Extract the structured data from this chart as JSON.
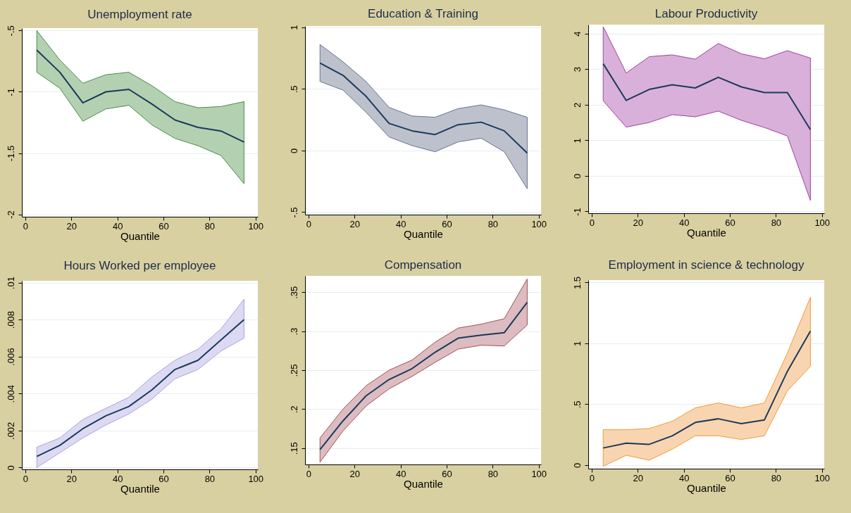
{
  "chart_data": [
    {
      "type": "line",
      "title": "Unemployment rate",
      "xlabel": "Quantile",
      "x": [
        5,
        15,
        25,
        35,
        45,
        55,
        65,
        75,
        85,
        95
      ],
      "xlim": [
        -1.5,
        101
      ],
      "xticks": [
        0,
        20,
        40,
        60,
        80,
        100
      ],
      "ylim": [
        -2.02,
        -0.48
      ],
      "yticks": [
        {
          "value": -0.5,
          "label": "-.5"
        },
        -1,
        -1.5,
        -2
      ],
      "grid": "y",
      "marker": "none",
      "series": [
        {
          "color": "#1a3a5c",
          "values": [
            -0.66,
            -0.84,
            -1.09,
            -1.0,
            -0.98,
            -1.1,
            -1.23,
            -1.29,
            -1.32,
            -1.41
          ],
          "lower": [
            -0.84,
            -0.97,
            -1.24,
            -1.14,
            -1.11,
            -1.27,
            -1.38,
            -1.44,
            -1.52,
            -1.75
          ],
          "upper": [
            -0.5,
            -0.74,
            -0.93,
            -0.86,
            -0.84,
            -0.95,
            -1.08,
            -1.13,
            -1.12,
            -1.08
          ]
        }
      ]
    },
    {
      "type": "line",
      "title": "Education & Training",
      "xlabel": "Quantile",
      "x": [
        5,
        15,
        25,
        35,
        45,
        55,
        65,
        75,
        85,
        95
      ],
      "xlim": [
        -1.5,
        101
      ],
      "xticks": [
        0,
        20,
        40,
        60,
        80,
        100
      ],
      "ylim": [
        -0.52,
        1.01
      ],
      "yticks": [
        {
          "value": -0.5,
          "label": "-.5"
        },
        0,
        {
          "value": 0.5,
          "label": ".5"
        },
        1
      ],
      "grid": "y",
      "marker": "none",
      "series": [
        {
          "color": "#1a3a5c",
          "values": [
            0.71,
            0.61,
            0.44,
            0.22,
            0.16,
            0.13,
            0.21,
            0.23,
            0.16,
            -0.02
          ],
          "lower": [
            0.56,
            0.49,
            0.31,
            0.11,
            0.04,
            -0.01,
            0.07,
            0.1,
            -0.01,
            -0.31
          ],
          "upper": [
            0.86,
            0.72,
            0.56,
            0.35,
            0.28,
            0.27,
            0.34,
            0.37,
            0.33,
            0.27
          ]
        }
      ]
    },
    {
      "type": "line",
      "title": "Labour Productivity",
      "xlabel": "Quantile",
      "x": [
        5,
        15,
        25,
        35,
        45,
        55,
        65,
        75,
        85,
        95
      ],
      "xlim": [
        -1.5,
        101
      ],
      "xticks": [
        0,
        20,
        40,
        60,
        80,
        100
      ],
      "ylim": [
        -1.05,
        4.25
      ],
      "yticks": [
        -1,
        0,
        1,
        2,
        3,
        4
      ],
      "grid": "y",
      "marker": "none",
      "series": [
        {
          "color": "#1a3a5c",
          "values": [
            3.15,
            2.12,
            2.43,
            2.56,
            2.47,
            2.77,
            2.5,
            2.34,
            2.34,
            1.3
          ],
          "lower": [
            2.11,
            1.37,
            1.5,
            1.72,
            1.66,
            1.82,
            1.56,
            1.36,
            1.12,
            -0.69
          ],
          "upper": [
            4.19,
            2.89,
            3.35,
            3.4,
            3.28,
            3.72,
            3.43,
            3.29,
            3.52,
            3.31
          ]
        }
      ]
    },
    {
      "type": "line",
      "title": "Hours Worked per employee",
      "xlabel": "Quantile",
      "x": [
        5,
        15,
        25,
        35,
        45,
        55,
        65,
        75,
        85,
        95
      ],
      "xlim": [
        -1.5,
        101
      ],
      "xticks": [
        0,
        20,
        40,
        60,
        80,
        100
      ],
      "ylim": [
        -0.0001,
        0.0101
      ],
      "yticks": [
        0,
        {
          "value": 0.002,
          "label": ".002"
        },
        {
          "value": 0.004,
          "label": ".004"
        },
        {
          "value": 0.006,
          "label": ".006"
        },
        {
          "value": 0.008,
          "label": ".008"
        },
        {
          "value": 0.01,
          "label": ".01"
        }
      ],
      "grid": "y",
      "marker": "none",
      "series": [
        {
          "color": "#1a3a5c",
          "values": [
            0.0006,
            0.0012,
            0.0021,
            0.0028,
            0.0033,
            0.0042,
            0.0053,
            0.0058,
            0.0069,
            0.008
          ],
          "lower": [
            0.0,
            0.0008,
            0.0016,
            0.0023,
            0.0029,
            0.0037,
            0.0048,
            0.0053,
            0.0063,
            0.007
          ],
          "upper": [
            0.0011,
            0.0016,
            0.0026,
            0.0032,
            0.0038,
            0.0049,
            0.0058,
            0.0064,
            0.0075,
            0.0091
          ]
        }
      ]
    },
    {
      "type": "line",
      "title": "Compensation",
      "xlabel": "Quantile",
      "x": [
        5,
        15,
        25,
        35,
        45,
        55,
        65,
        75,
        85,
        95
      ],
      "xlim": [
        -1.5,
        101
      ],
      "xticks": [
        0,
        20,
        40,
        60,
        80,
        100
      ],
      "ylim": [
        0.129,
        0.371
      ],
      "yticks": [
        {
          "value": 0.15,
          "label": ".15"
        },
        {
          "value": 0.2,
          "label": ".2"
        },
        {
          "value": 0.25,
          "label": ".25"
        },
        {
          "value": 0.3,
          "label": ".3"
        },
        {
          "value": 0.35,
          "label": ".35"
        }
      ],
      "grid": "y",
      "marker": "none",
      "series": [
        {
          "color": "#1a3a5c",
          "values": [
            0.148,
            0.185,
            0.217,
            0.238,
            0.252,
            0.273,
            0.291,
            0.295,
            0.298,
            0.337
          ],
          "lower": [
            0.132,
            0.172,
            0.204,
            0.226,
            0.242,
            0.26,
            0.277,
            0.282,
            0.281,
            0.308
          ],
          "upper": [
            0.163,
            0.2,
            0.23,
            0.25,
            0.263,
            0.286,
            0.304,
            0.309,
            0.316,
            0.367
          ]
        }
      ]
    },
    {
      "type": "line",
      "title": "Employment in science & technology",
      "xlabel": "Quantile",
      "x": [
        5,
        15,
        25,
        35,
        45,
        55,
        65,
        75,
        85,
        95
      ],
      "xlim": [
        -1.5,
        101
      ],
      "xticks": [
        0,
        20,
        40,
        60,
        80,
        100
      ],
      "ylim": [
        -0.03,
        1.52
      ],
      "yticks": [
        0,
        {
          "value": 0.5,
          "label": ".5"
        },
        1,
        1.5
      ],
      "grid": "y",
      "marker": "none",
      "series": [
        {
          "color": "#1a3a5c",
          "values": [
            0.14,
            0.18,
            0.17,
            0.24,
            0.35,
            0.38,
            0.34,
            0.37,
            0.77,
            1.1
          ],
          "lower": [
            -0.01,
            0.08,
            0.04,
            0.13,
            0.24,
            0.24,
            0.21,
            0.24,
            0.61,
            0.81
          ],
          "upper": [
            0.29,
            0.29,
            0.3,
            0.36,
            0.47,
            0.51,
            0.47,
            0.51,
            0.92,
            1.38
          ]
        }
      ]
    }
  ]
}
